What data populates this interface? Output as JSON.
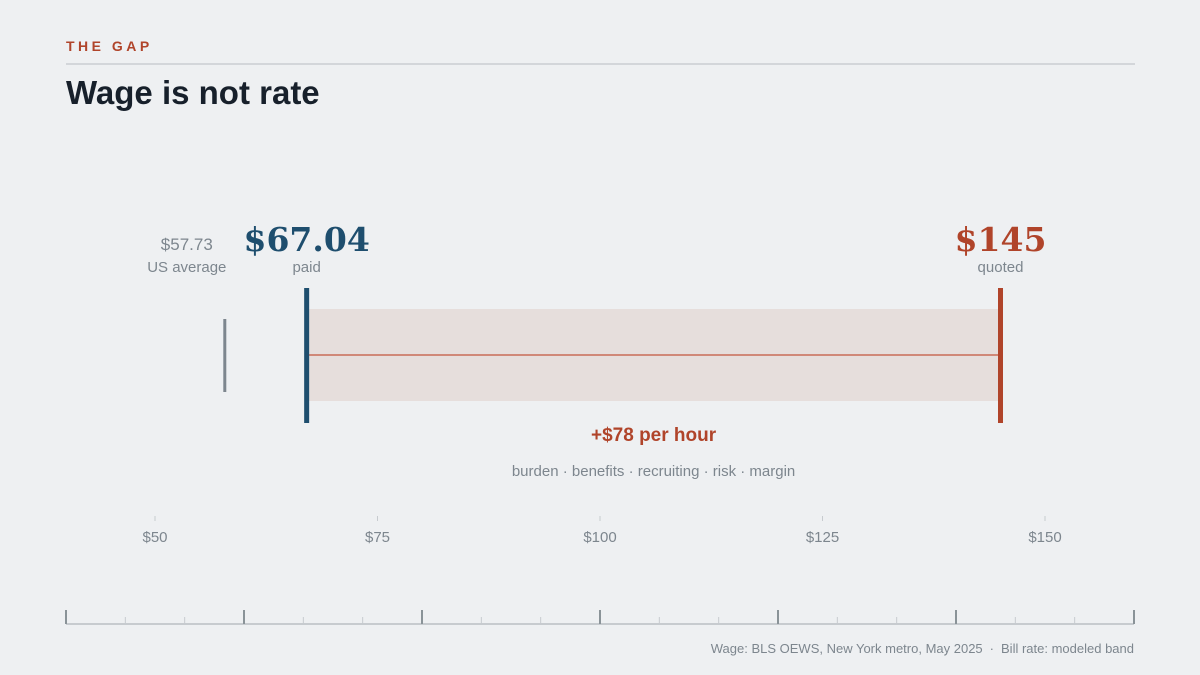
{
  "header": {
    "kicker": "THE GAP",
    "title": "Wage is not rate"
  },
  "colors": {
    "accent": "#b0442a",
    "paid": "#1e4e6e",
    "reference": "#7d868e",
    "band": "#e6dedc",
    "band_line": "#d08878",
    "text_muted": "#7d868e",
    "axis": "#c7cbcf"
  },
  "chart_data": {
    "type": "range",
    "xlim": [
      40,
      160
    ],
    "ticks": [
      50,
      75,
      100,
      125,
      150
    ],
    "tick_labels": [
      "$50",
      "$75",
      "$100",
      "$125",
      "$150"
    ],
    "markers": [
      {
        "id": "us-average",
        "value": 57.73,
        "value_label": "$57.73",
        "label": "US average"
      },
      {
        "id": "paid",
        "value": 67.04,
        "value_label": "$67.04",
        "label": "paid"
      },
      {
        "id": "quoted",
        "value": 145,
        "value_label": "$145",
        "label": "quoted"
      }
    ],
    "gap": {
      "from": 67.04,
      "to": 145,
      "label": "+$78 per hour",
      "components": "burden · benefits · recruiting · risk · margin"
    }
  },
  "footer": {
    "wage_source": "Wage: BLS OEWS, New York metro, May 2025",
    "separator": "·",
    "bill_source": "Bill rate: modeled band"
  }
}
